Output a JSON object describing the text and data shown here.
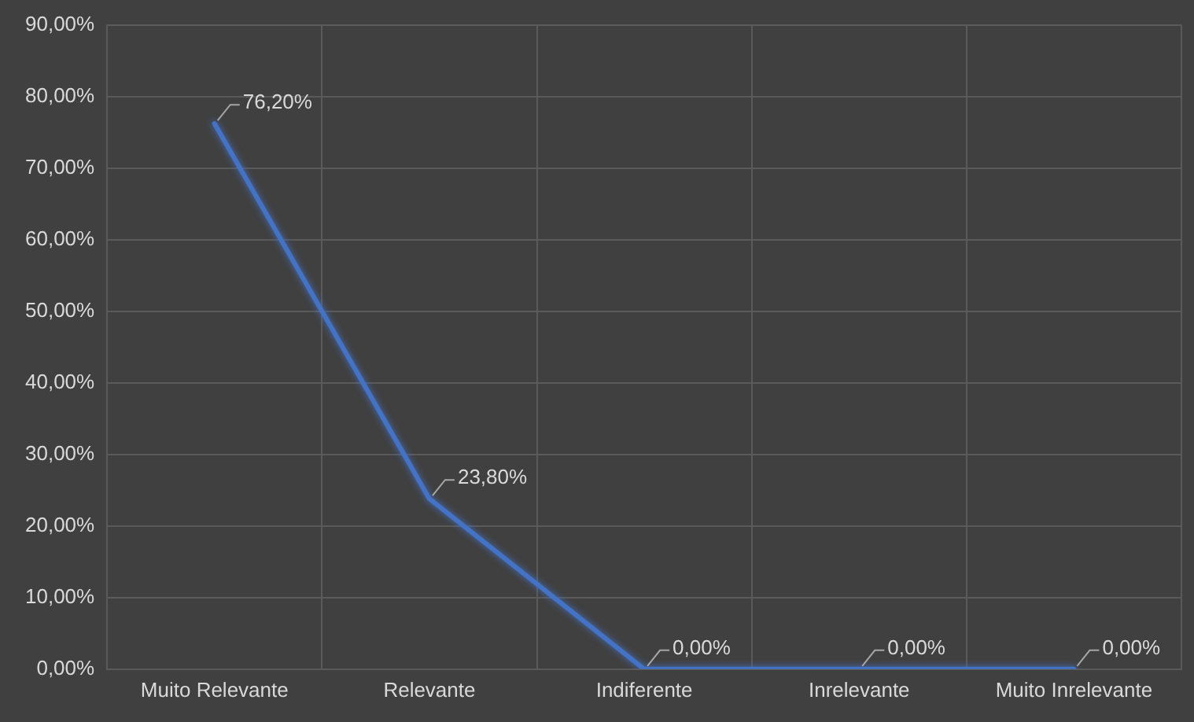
{
  "chart_data": {
    "type": "line",
    "categories": [
      "Muito Relevante",
      "Relevante",
      "Indiferente",
      "Inrelevante",
      "Muito Inrelevante"
    ],
    "series": [
      {
        "color": "#4472c4",
        "values": [
          76.2,
          23.8,
          0,
          0,
          0
        ],
        "value_labels": [
          "76,20%",
          "23,80%",
          "0,00%",
          "0,00%",
          "0,00%"
        ]
      }
    ],
    "ylim": [
      0,
      90
    ],
    "yticks": [
      {
        "value": 0,
        "label": "0,00%"
      },
      {
        "value": 10,
        "label": "10,00%"
      },
      {
        "value": 20,
        "label": "20,00%"
      },
      {
        "value": 30,
        "label": "30,00%"
      },
      {
        "value": 40,
        "label": "40,00%"
      },
      {
        "value": 50,
        "label": "50,00%"
      },
      {
        "value": 60,
        "label": "60,00%"
      },
      {
        "value": 70,
        "label": "70,00%"
      },
      {
        "value": 80,
        "label": "80,00%"
      },
      {
        "value": 90,
        "label": "90,00%"
      }
    ],
    "grid": true,
    "legend": false,
    "marker": "none",
    "line_style": "solid"
  }
}
